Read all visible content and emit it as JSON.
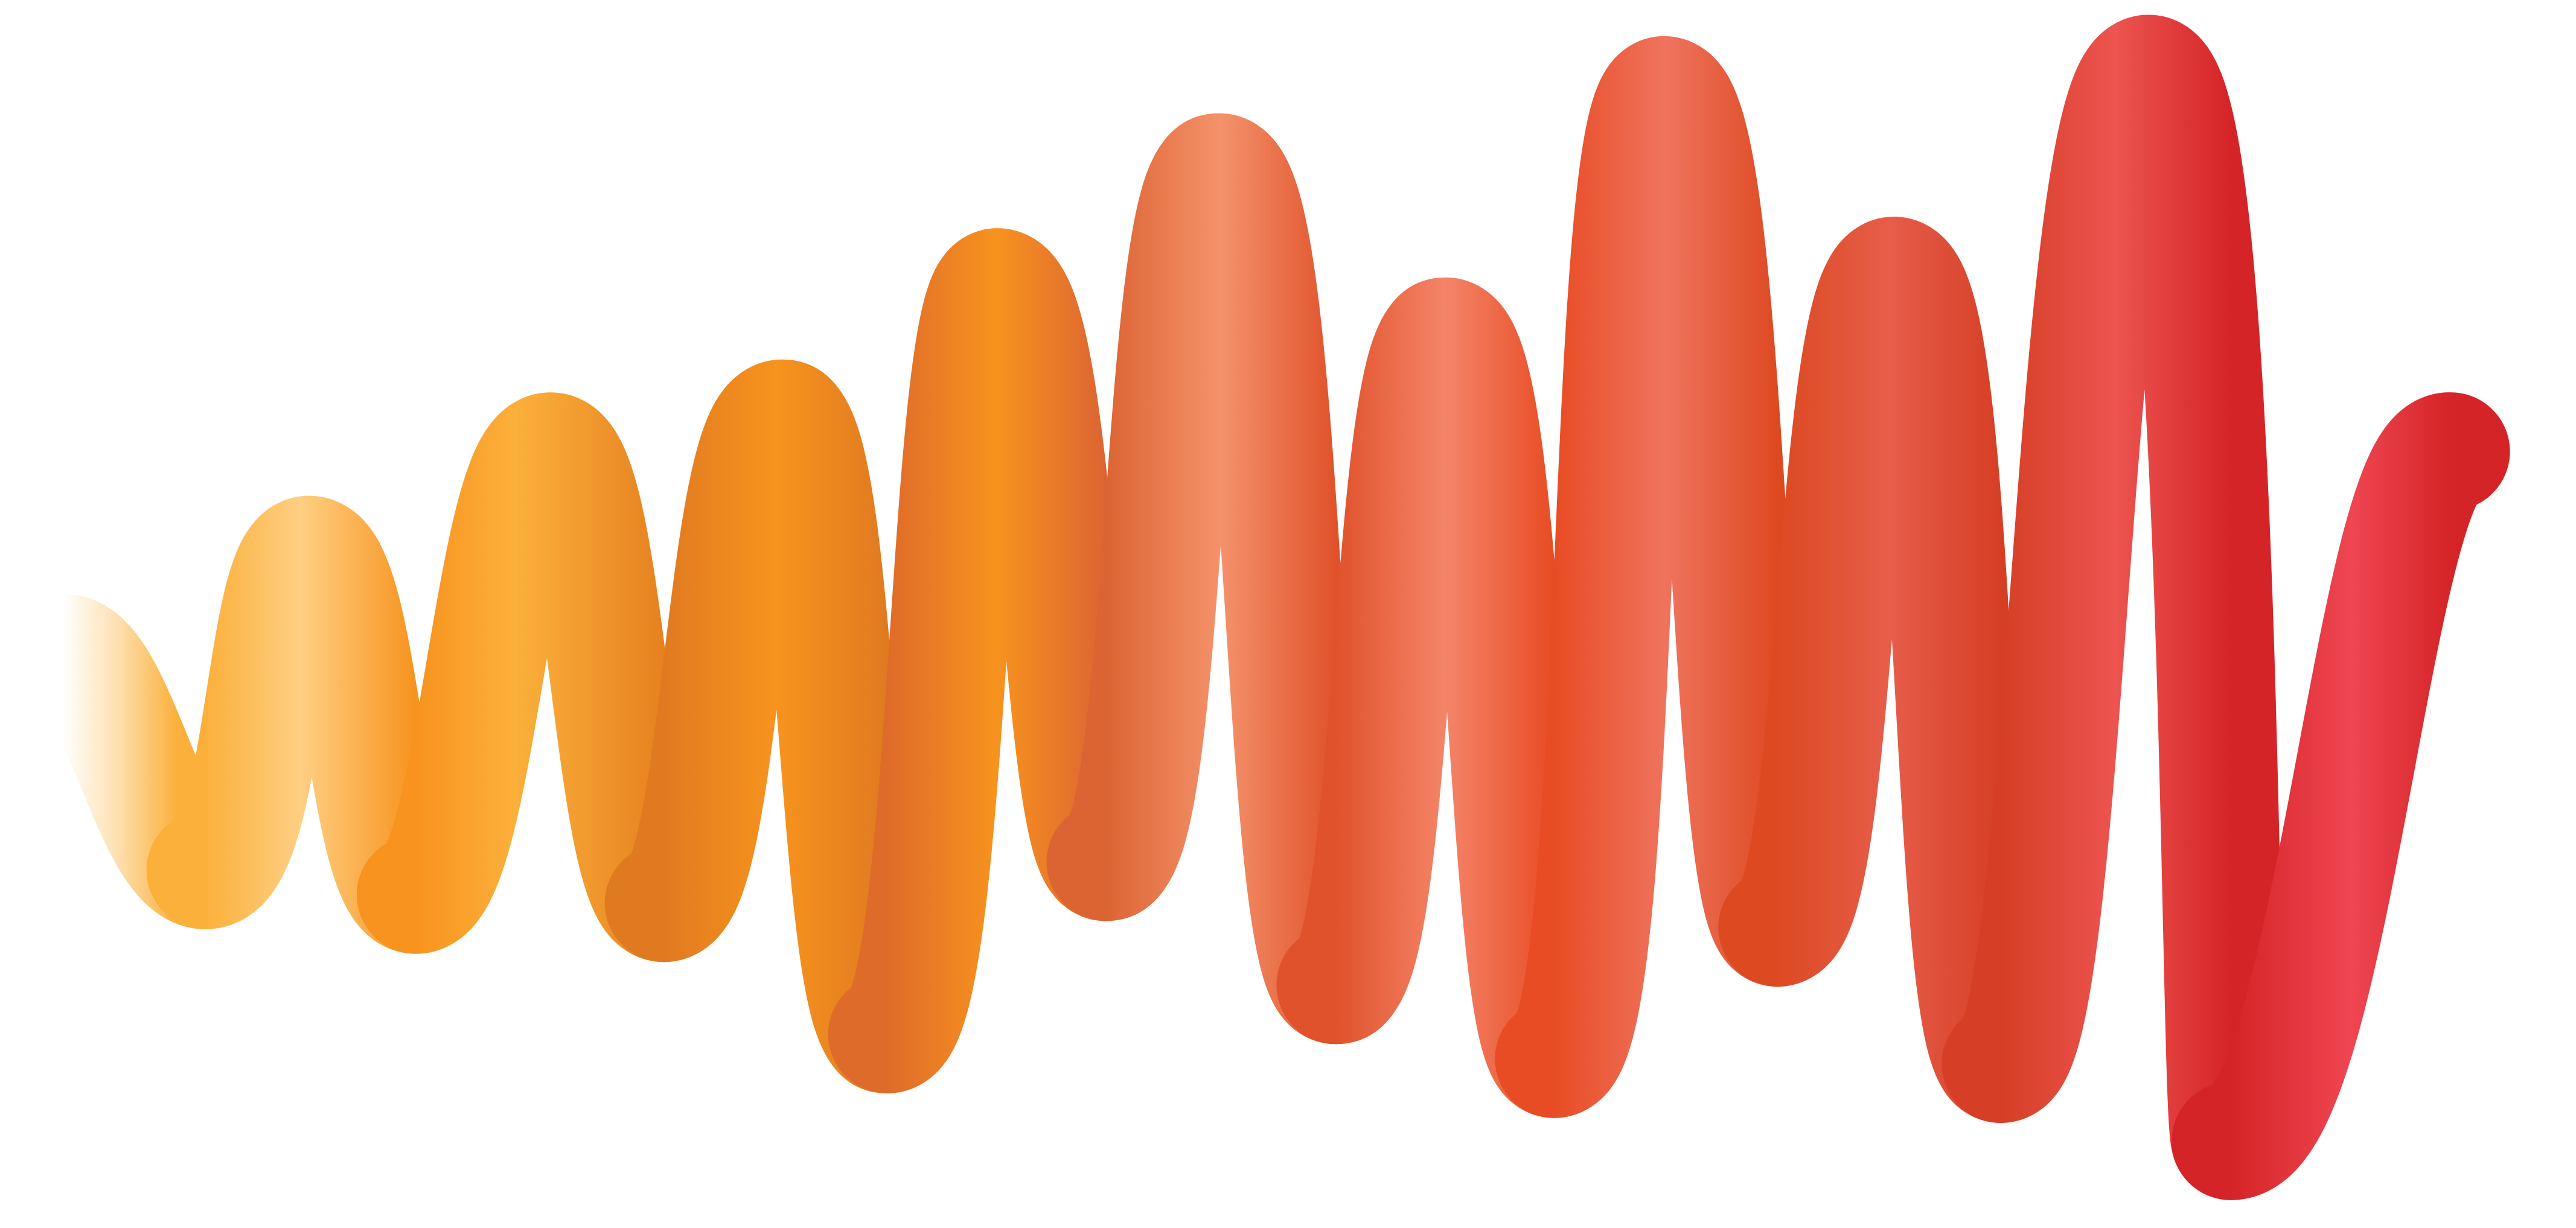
{
  "artwork": {
    "kind": "logo-mark",
    "description_name": "wave-ribbon-logo",
    "palette": {
      "yellow": "#fbb03b",
      "light_yellow": "#fecf83",
      "orange": "#f7931e",
      "dark_orange": "#e07a20",
      "peach": "#f4926b",
      "salmon": "#f17c62",
      "vermilion": "#e84c24",
      "red_orange": "#e0452b",
      "coral": "#ec5d4f",
      "crimson": "#d52427",
      "pink_red": "#ef4652"
    }
  }
}
